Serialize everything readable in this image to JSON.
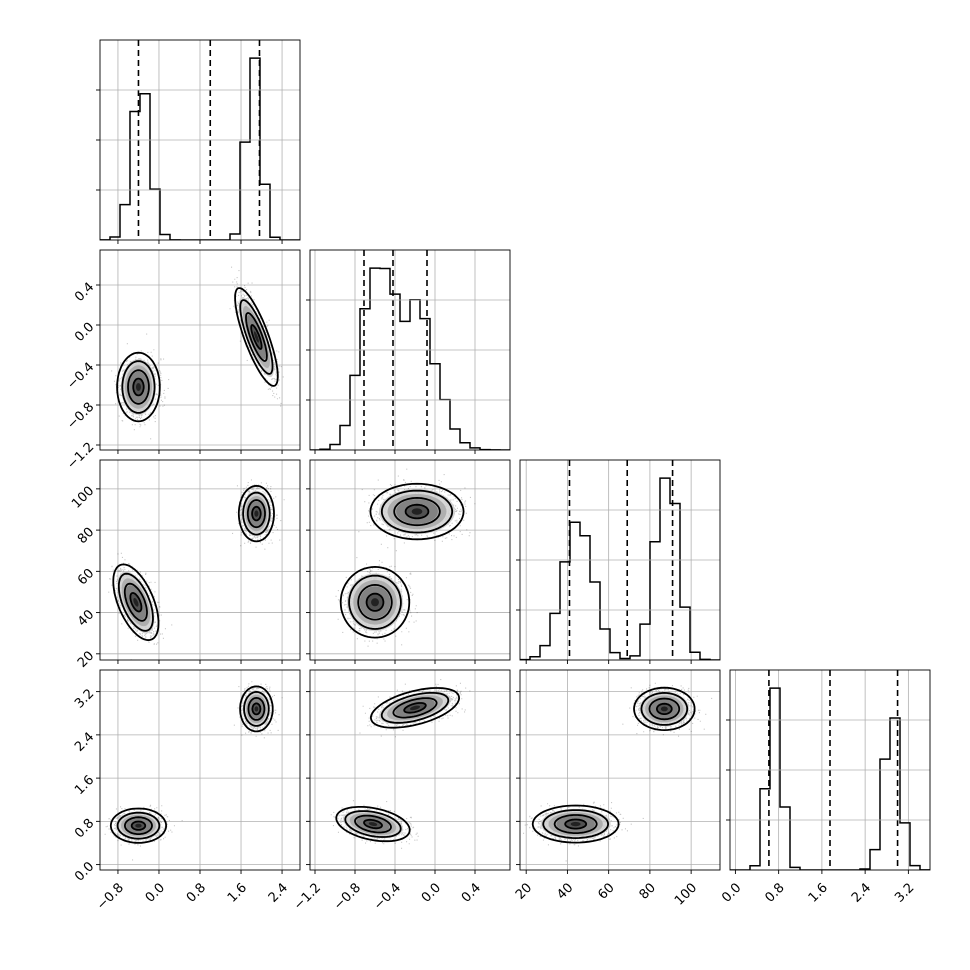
{
  "chart_data": {
    "type": "corner",
    "grid": true,
    "variables": [
      {
        "range": [
          -1.15,
          2.75
        ],
        "ticks": [
          -0.8,
          0.0,
          0.8,
          1.6,
          2.4
        ],
        "tick_labels": [
          "−0.8",
          "0.0",
          "0.8",
          "1.6",
          "2.4"
        ],
        "quantiles": [
          -0.4,
          1.0,
          1.96
        ],
        "modes": [
          {
            "center": -0.35,
            "sd": 0.18,
            "weight": 0.5
          },
          {
            "center": 1.85,
            "sd": 0.14,
            "weight": 0.5
          }
        ]
      },
      {
        "range": [
          -1.25,
          0.75
        ],
        "ticks": [
          -1.2,
          -0.8,
          -0.4,
          0.0,
          0.4
        ],
        "tick_labels": [
          "−1.2",
          "−0.8",
          "−0.4",
          "0.0",
          "0.4"
        ],
        "quantiles": [
          -0.71,
          -0.42,
          -0.08
        ],
        "modes": [
          {
            "center": -0.6,
            "sd": 0.15,
            "weight": 0.5
          },
          {
            "center": -0.18,
            "sd": 0.2,
            "weight": 0.5
          }
        ]
      },
      {
        "range": [
          17,
          114
        ],
        "ticks": [
          20,
          40,
          60,
          80,
          100
        ],
        "tick_labels": [
          "20",
          "40",
          "60",
          "80",
          "100"
        ],
        "quantiles": [
          41,
          69,
          91
        ],
        "modes": [
          {
            "center": 45,
            "sd": 7.5,
            "weight": 0.5
          },
          {
            "center": 88,
            "sd": 5.5,
            "weight": 0.5
          }
        ]
      },
      {
        "range": [
          -0.1,
          3.6
        ],
        "ticks": [
          0.0,
          0.8,
          1.6,
          2.4,
          3.2
        ],
        "tick_labels": [
          "0.0",
          "0.8",
          "1.6",
          "2.4",
          "3.2"
        ],
        "quantiles": [
          0.62,
          1.75,
          3.0
        ],
        "modes": [
          {
            "center": 0.72,
            "sd": 0.13,
            "weight": 0.5
          },
          {
            "center": 2.9,
            "sd": 0.16,
            "weight": 0.5
          }
        ]
      }
    ],
    "clusters": [
      {
        "pairs": {
          "1-0": {
            "cx": -0.4,
            "cy": -0.62,
            "sx": 0.17,
            "sy": 0.14,
            "rho": 0.0
          },
          "2-0": {
            "cx": -0.45,
            "cy": 45,
            "sx": 0.18,
            "sy": 7.5,
            "rho": -0.55
          },
          "2-1": {
            "cx": -0.6,
            "cy": 45,
            "sx": 0.14,
            "sy": 7.0,
            "rho": 0.0
          },
          "3-0": {
            "cx": -0.4,
            "cy": 0.72,
            "sx": 0.22,
            "sy": 0.13,
            "rho": 0.0
          },
          "3-1": {
            "cx": -0.62,
            "cy": 0.75,
            "sx": 0.15,
            "sy": 0.13,
            "rho": -0.35
          },
          "3-2": {
            "cx": 44,
            "cy": 0.75,
            "sx": 8.5,
            "sy": 0.14,
            "rho": 0.0
          }
        }
      },
      {
        "pairs": {
          "1-0": {
            "cx": 1.9,
            "cy": -0.12,
            "sx": 0.17,
            "sy": 0.2,
            "rho": -0.8
          },
          "2-0": {
            "cx": 1.9,
            "cy": 88,
            "sx": 0.14,
            "sy": 5.5,
            "rho": 0.0
          },
          "2-1": {
            "cx": -0.18,
            "cy": 89,
            "sx": 0.19,
            "sy": 5.5,
            "rho": 0.0
          },
          "3-0": {
            "cx": 1.9,
            "cy": 2.88,
            "sx": 0.13,
            "sy": 0.17,
            "rho": 0.0
          },
          "3-1": {
            "cx": -0.2,
            "cy": 2.9,
            "sx": 0.18,
            "sy": 0.15,
            "rho": 0.5
          },
          "3-2": {
            "cx": 87,
            "cy": 2.88,
            "sx": 6.0,
            "sy": 0.16,
            "rho": 0.0
          }
        }
      }
    ]
  }
}
